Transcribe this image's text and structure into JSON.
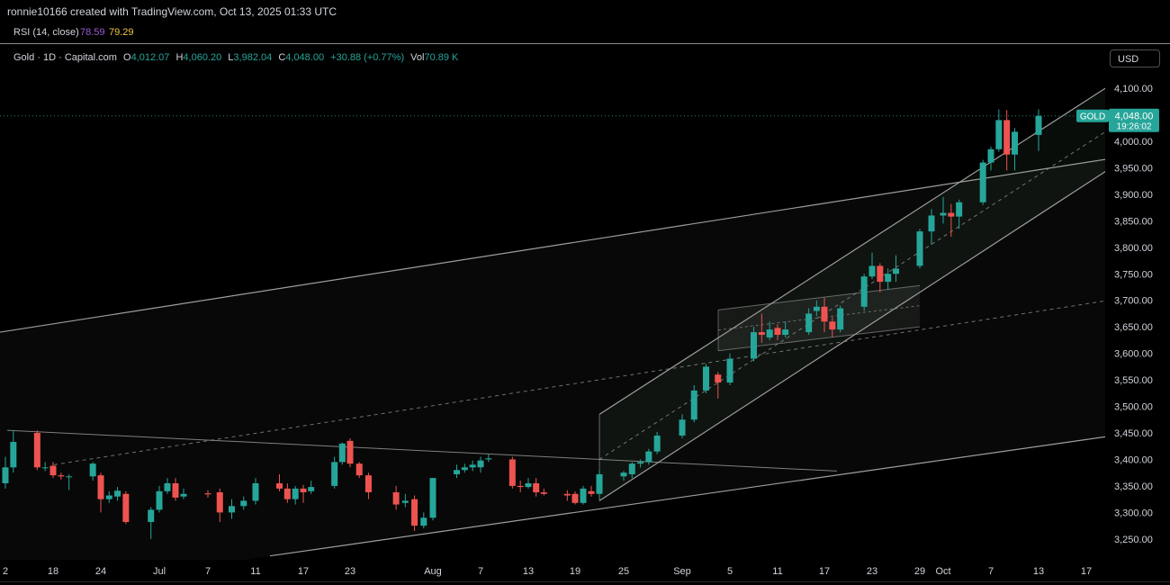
{
  "credit": "ronnie10166 created with TradingView.com, Oct 13, 2025 01:33 UTC",
  "rsi": {
    "label": "RSI (14, close)",
    "value1": "78.59",
    "value2": "79.29",
    "color1": "#9b59d0",
    "color2": "#f5c542"
  },
  "header": {
    "symbol": "Gold · 1D · Capital.com",
    "o_label": "O",
    "o_value": "4,012.07",
    "h_label": "H",
    "h_value": "4,060.20",
    "l_label": "L",
    "l_value": "3,982.04",
    "c_label": "C",
    "c_value": "4,048.00",
    "change": "+30.88 (+0.77%)",
    "vol_label": "Vol",
    "vol_value": "70.89 K"
  },
  "currency_button": "USD",
  "colors": {
    "up": "#26a69a",
    "down": "#ef5350",
    "line": "#9e9e9e"
  },
  "chart_data": {
    "type": "candlestick",
    "ylim": [
      3220,
      4110
    ],
    "y_ticks": [
      4100,
      4050,
      4000,
      3950,
      3900,
      3850,
      3800,
      3750,
      3700,
      3650,
      3600,
      3550,
      3500,
      3450,
      3400,
      3350,
      3300,
      3250
    ],
    "y_tick_labels": [
      "4,100.00",
      "4,050.00",
      "4,000.00",
      "3,950.00",
      "3,900.00",
      "3,850.00",
      "3,800.00",
      "3,750.00",
      "3,700.00",
      "3,650.00",
      "3,600.00",
      "3,550.00",
      "3,500.00",
      "3,450.00",
      "3,400.00",
      "3,350.00",
      "3,300.00",
      "3,250.00"
    ],
    "x_ticks": [
      {
        "label": "2",
        "date": "2025-06-12"
      },
      {
        "label": "18",
        "date": "2025-06-18"
      },
      {
        "label": "24",
        "date": "2025-06-24"
      },
      {
        "label": "Jul",
        "date": "2025-07-01"
      },
      {
        "label": "7",
        "date": "2025-07-07"
      },
      {
        "label": "11",
        "date": "2025-07-11"
      },
      {
        "label": "17",
        "date": "2025-07-17"
      },
      {
        "label": "23",
        "date": "2025-07-23"
      },
      {
        "label": "Aug",
        "date": "2025-08-01"
      },
      {
        "label": "7",
        "date": "2025-08-07"
      },
      {
        "label": "13",
        "date": "2025-08-13"
      },
      {
        "label": "19",
        "date": "2025-08-19"
      },
      {
        "label": "25",
        "date": "2025-08-25"
      },
      {
        "label": "Sep",
        "date": "2025-09-01"
      },
      {
        "label": "5",
        "date": "2025-09-05"
      },
      {
        "label": "11",
        "date": "2025-09-11"
      },
      {
        "label": "17",
        "date": "2025-09-17"
      },
      {
        "label": "23",
        "date": "2025-09-23"
      },
      {
        "label": "29",
        "date": "2025-09-29"
      },
      {
        "label": "Oct",
        "date": "2025-10-01"
      },
      {
        "label": "7",
        "date": "2025-10-07"
      },
      {
        "label": "13",
        "date": "2025-10-13"
      },
      {
        "label": "17",
        "date": "2025-10-17"
      }
    ],
    "candles": [
      {
        "d": "2025-06-12",
        "o": 3355,
        "h": 3405,
        "l": 3345,
        "c": 3385
      },
      {
        "d": "2025-06-13",
        "o": 3385,
        "h": 3455,
        "l": 3375,
        "c": 3433
      },
      {
        "d": "2025-06-16",
        "o": 3450,
        "h": 3455,
        "l": 3380,
        "c": 3385
      },
      {
        "d": "2025-06-17",
        "o": 3385,
        "h": 3395,
        "l": 3378,
        "c": 3385
      },
      {
        "d": "2025-06-18",
        "o": 3388,
        "h": 3395,
        "l": 3365,
        "c": 3370
      },
      {
        "d": "2025-06-19",
        "o": 3370,
        "h": 3375,
        "l": 3362,
        "c": 3368
      },
      {
        "d": "2025-06-20",
        "o": 3368,
        "h": 3372,
        "l": 3342,
        "c": 3368
      },
      {
        "d": "2025-06-23",
        "o": 3368,
        "h": 3395,
        "l": 3360,
        "c": 3392
      },
      {
        "d": "2025-06-24",
        "o": 3370,
        "h": 3375,
        "l": 3300,
        "c": 3325
      },
      {
        "d": "2025-06-25",
        "o": 3325,
        "h": 3340,
        "l": 3318,
        "c": 3332
      },
      {
        "d": "2025-06-26",
        "o": 3330,
        "h": 3348,
        "l": 3322,
        "c": 3341
      },
      {
        "d": "2025-06-27",
        "o": 3335,
        "h": 3340,
        "l": 3278,
        "c": 3282
      },
      {
        "d": "2025-06-30",
        "o": 3282,
        "h": 3310,
        "l": 3250,
        "c": 3305
      },
      {
        "d": "2025-07-01",
        "o": 3305,
        "h": 3350,
        "l": 3300,
        "c": 3340
      },
      {
        "d": "2025-07-02",
        "o": 3340,
        "h": 3365,
        "l": 3335,
        "c": 3355
      },
      {
        "d": "2025-07-03",
        "o": 3355,
        "h": 3365,
        "l": 3322,
        "c": 3328
      },
      {
        "d": "2025-07-04",
        "o": 3330,
        "h": 3345,
        "l": 3325,
        "c": 3335
      },
      {
        "d": "2025-07-07",
        "o": 3336,
        "h": 3342,
        "l": 3328,
        "c": 3334
      },
      {
        "d": "2025-07-08",
        "o": 3338,
        "h": 3345,
        "l": 3282,
        "c": 3300
      },
      {
        "d": "2025-07-09",
        "o": 3300,
        "h": 3325,
        "l": 3288,
        "c": 3312
      },
      {
        "d": "2025-07-10",
        "o": 3312,
        "h": 3330,
        "l": 3305,
        "c": 3322
      },
      {
        "d": "2025-07-11",
        "o": 3322,
        "h": 3365,
        "l": 3315,
        "c": 3355
      },
      {
        "d": "2025-07-14",
        "o": 3355,
        "h": 3372,
        "l": 3340,
        "c": 3345
      },
      {
        "d": "2025-07-15",
        "o": 3345,
        "h": 3355,
        "l": 3318,
        "c": 3325
      },
      {
        "d": "2025-07-16",
        "o": 3325,
        "h": 3350,
        "l": 3315,
        "c": 3345
      },
      {
        "d": "2025-07-17",
        "o": 3345,
        "h": 3352,
        "l": 3318,
        "c": 3338
      },
      {
        "d": "2025-07-18",
        "o": 3340,
        "h": 3360,
        "l": 3335,
        "c": 3348
      },
      {
        "d": "2025-07-21",
        "o": 3350,
        "h": 3405,
        "l": 3345,
        "c": 3395
      },
      {
        "d": "2025-07-22",
        "o": 3395,
        "h": 3432,
        "l": 3390,
        "c": 3430
      },
      {
        "d": "2025-07-23",
        "o": 3435,
        "h": 3440,
        "l": 3385,
        "c": 3392
      },
      {
        "d": "2025-07-24",
        "o": 3392,
        "h": 3395,
        "l": 3365,
        "c": 3370
      },
      {
        "d": "2025-07-25",
        "o": 3370,
        "h": 3375,
        "l": 3325,
        "c": 3338
      },
      {
        "d": "2025-07-28",
        "o": 3338,
        "h": 3350,
        "l": 3305,
        "c": 3315
      },
      {
        "d": "2025-07-29",
        "o": 3318,
        "h": 3335,
        "l": 3310,
        "c": 3322
      },
      {
        "d": "2025-07-30",
        "o": 3325,
        "h": 3332,
        "l": 3265,
        "c": 3275
      },
      {
        "d": "2025-07-31",
        "o": 3275,
        "h": 3300,
        "l": 3270,
        "c": 3290
      },
      {
        "d": "2025-08-01",
        "o": 3290,
        "h": 3360,
        "l": 3285,
        "c": 3365
      },
      {
        "d": "2025-08-04",
        "o": 3372,
        "h": 3390,
        "l": 3365,
        "c": 3380
      },
      {
        "d": "2025-08-05",
        "o": 3380,
        "h": 3392,
        "l": 3375,
        "c": 3385
      },
      {
        "d": "2025-08-06",
        "o": 3385,
        "h": 3398,
        "l": 3378,
        "c": 3390
      },
      {
        "d": "2025-08-07",
        "o": 3385,
        "h": 3405,
        "l": 3375,
        "c": 3398
      },
      {
        "d": "2025-08-08",
        "o": 3400,
        "h": 3410,
        "l": 3395,
        "c": 3402
      },
      {
        "d": "2025-08-11",
        "o": 3400,
        "h": 3405,
        "l": 3345,
        "c": 3350
      },
      {
        "d": "2025-08-12",
        "o": 3350,
        "h": 3360,
        "l": 3338,
        "c": 3348
      },
      {
        "d": "2025-08-13",
        "o": 3348,
        "h": 3365,
        "l": 3345,
        "c": 3355
      },
      {
        "d": "2025-08-14",
        "o": 3355,
        "h": 3365,
        "l": 3330,
        "c": 3338
      },
      {
        "d": "2025-08-15",
        "o": 3338,
        "h": 3345,
        "l": 3332,
        "c": 3335
      },
      {
        "d": "2025-08-18",
        "o": 3335,
        "h": 3342,
        "l": 3322,
        "c": 3332
      },
      {
        "d": "2025-08-19",
        "o": 3335,
        "h": 3340,
        "l": 3315,
        "c": 3318
      },
      {
        "d": "2025-08-20",
        "o": 3318,
        "h": 3350,
        "l": 3315,
        "c": 3345
      },
      {
        "d": "2025-08-21",
        "o": 3340,
        "h": 3350,
        "l": 3330,
        "c": 3335
      },
      {
        "d": "2025-08-22",
        "o": 3335,
        "h": 3380,
        "l": 3325,
        "c": 3372
      },
      {
        "d": "2025-08-25",
        "o": 3368,
        "h": 3378,
        "l": 3360,
        "c": 3375
      },
      {
        "d": "2025-08-26",
        "o": 3372,
        "h": 3395,
        "l": 3365,
        "c": 3392
      },
      {
        "d": "2025-08-27",
        "o": 3392,
        "h": 3400,
        "l": 3385,
        "c": 3395
      },
      {
        "d": "2025-08-28",
        "o": 3395,
        "h": 3420,
        "l": 3390,
        "c": 3415
      },
      {
        "d": "2025-08-29",
        "o": 3415,
        "h": 3452,
        "l": 3410,
        "c": 3445
      },
      {
        "d": "2025-09-01",
        "o": 3445,
        "h": 3485,
        "l": 3440,
        "c": 3475
      },
      {
        "d": "2025-09-02",
        "o": 3475,
        "h": 3540,
        "l": 3470,
        "c": 3530
      },
      {
        "d": "2025-09-03",
        "o": 3530,
        "h": 3580,
        "l": 3525,
        "c": 3575
      },
      {
        "d": "2025-09-04",
        "o": 3560,
        "h": 3565,
        "l": 3515,
        "c": 3545
      },
      {
        "d": "2025-09-05",
        "o": 3545,
        "h": 3600,
        "l": 3540,
        "c": 3590
      },
      {
        "d": "2025-09-08",
        "o": 3590,
        "h": 3650,
        "l": 3585,
        "c": 3640
      },
      {
        "d": "2025-09-09",
        "o": 3640,
        "h": 3675,
        "l": 3620,
        "c": 3635
      },
      {
        "d": "2025-09-10",
        "o": 3630,
        "h": 3660,
        "l": 3625,
        "c": 3645
      },
      {
        "d": "2025-09-11",
        "o": 3648,
        "h": 3655,
        "l": 3625,
        "c": 3635
      },
      {
        "d": "2025-09-12",
        "o": 3635,
        "h": 3660,
        "l": 3630,
        "c": 3645
      },
      {
        "d": "2025-09-15",
        "o": 3640,
        "h": 3685,
        "l": 3635,
        "c": 3675
      },
      {
        "d": "2025-09-16",
        "o": 3680,
        "h": 3700,
        "l": 3670,
        "c": 3688
      },
      {
        "d": "2025-09-17",
        "o": 3688,
        "h": 3705,
        "l": 3640,
        "c": 3660
      },
      {
        "d": "2025-09-18",
        "o": 3660,
        "h": 3668,
        "l": 3630,
        "c": 3645
      },
      {
        "d": "2025-09-19",
        "o": 3645,
        "h": 3690,
        "l": 3640,
        "c": 3685
      },
      {
        "d": "2025-09-22",
        "o": 3688,
        "h": 3750,
        "l": 3680,
        "c": 3745
      },
      {
        "d": "2025-09-23",
        "o": 3745,
        "h": 3790,
        "l": 3740,
        "c": 3765
      },
      {
        "d": "2025-09-24",
        "o": 3765,
        "h": 3770,
        "l": 3715,
        "c": 3735
      },
      {
        "d": "2025-09-25",
        "o": 3735,
        "h": 3760,
        "l": 3720,
        "c": 3750
      },
      {
        "d": "2025-09-26",
        "o": 3750,
        "h": 3785,
        "l": 3735,
        "c": 3760
      },
      {
        "d": "2025-09-29",
        "o": 3765,
        "h": 3835,
        "l": 3760,
        "c": 3830
      },
      {
        "d": "2025-09-30",
        "o": 3830,
        "h": 3872,
        "l": 3805,
        "c": 3860
      },
      {
        "d": "2025-10-01",
        "o": 3860,
        "h": 3895,
        "l": 3845,
        "c": 3865
      },
      {
        "d": "2025-10-02",
        "o": 3865,
        "h": 3882,
        "l": 3820,
        "c": 3858
      },
      {
        "d": "2025-10-03",
        "o": 3858,
        "h": 3890,
        "l": 3835,
        "c": 3885
      },
      {
        "d": "2025-10-06",
        "o": 3885,
        "h": 3965,
        "l": 3880,
        "c": 3960
      },
      {
        "d": "2025-10-07",
        "o": 3960,
        "h": 3990,
        "l": 3945,
        "c": 3985
      },
      {
        "d": "2025-10-08",
        "o": 3985,
        "h": 4060,
        "l": 3980,
        "c": 4040
      },
      {
        "d": "2025-10-09",
        "o": 4040,
        "h": 4059,
        "l": 3945,
        "c": 3975
      },
      {
        "d": "2025-10-10",
        "o": 3975,
        "h": 4025,
        "l": 3945,
        "c": 4018
      },
      {
        "d": "2025-10-13",
        "o": 4012.07,
        "h": 4060.2,
        "l": 3982.04,
        "c": 4048
      }
    ],
    "last_price": {
      "symbol": "GOLD",
      "price": "4,048.00",
      "countdown": "19:26:02",
      "value": 4048
    }
  }
}
